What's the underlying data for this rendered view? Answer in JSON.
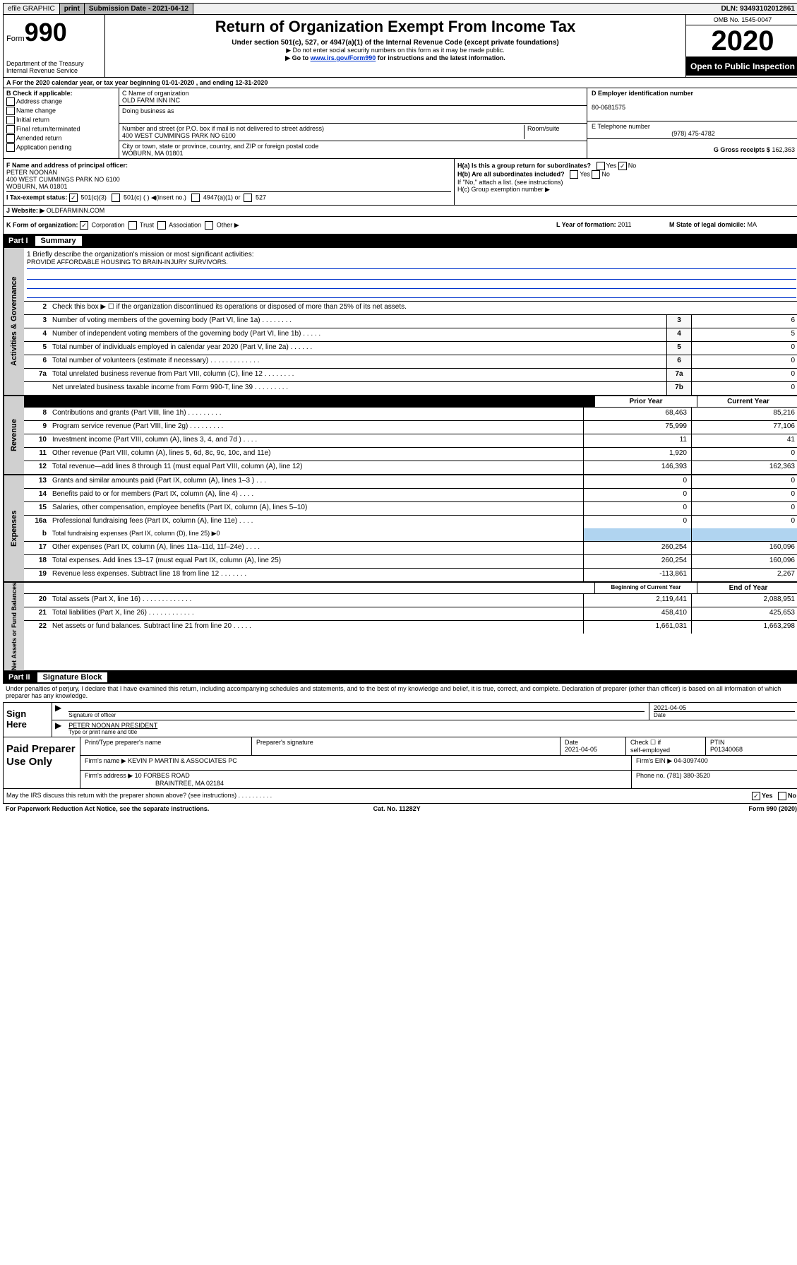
{
  "top": {
    "efile": "efile GRAPHIC",
    "print": "print",
    "subdate_label": "Submission Date - ",
    "subdate": "2021-04-12",
    "dln_label": "DLN: ",
    "dln": "93493102012861"
  },
  "header": {
    "form_label": "Form",
    "form_no": "990",
    "dept1": "Department of the Treasury",
    "dept2": "Internal Revenue Service",
    "title": "Return of Organization Exempt From Income Tax",
    "sub": "Under section 501(c), 527, or 4947(a)(1) of the Internal Revenue Code (except private foundations)",
    "note1": "▶ Do not enter social security numbers on this form as it may be made public.",
    "note2_a": "▶ Go to ",
    "note2_link": "www.irs.gov/Form990",
    "note2_b": " for instructions and the latest information.",
    "omb": "OMB No. 1545-0047",
    "year": "2020",
    "open": "Open to Public Inspection"
  },
  "rowA": "A For the 2020 calendar year, or tax year beginning 01-01-2020     , and ending 12-31-2020",
  "colB": {
    "label": "B Check if applicable:",
    "items": [
      "Address change",
      "Name change",
      "Initial return",
      "Final return/terminated",
      "Amended return",
      "Application pending"
    ]
  },
  "colC": {
    "name_label": "C Name of organization",
    "name": "OLD FARM INN INC",
    "dba_label": "Doing business as",
    "addr_label": "Number and street (or P.O. box if mail is not delivered to street address)",
    "room_label": "Room/suite",
    "addr": "400 WEST CUMMINGS PARK NO 6100",
    "city_label": "City or town, state or province, country, and ZIP or foreign postal code",
    "city": "WOBURN, MA  01801"
  },
  "colD": {
    "ein_label": "D Employer identification number",
    "ein": "80-0681575",
    "tel_label": "E Telephone number",
    "tel": "(978) 475-4782",
    "gross_label": "G Gross receipts $",
    "gross": "162,363"
  },
  "rowF": {
    "label": "F  Name and address of principal officer:",
    "name": "PETER NOONAN",
    "addr1": "400 WEST CUMMINGS PARK NO 6100",
    "addr2": "WOBURN, MA  01801"
  },
  "rowH": {
    "ha": "H(a)  Is this a group return for subordinates?",
    "ha_ans": "No",
    "hb": "H(b)  Are all subordinates included?",
    "hb_note": "If \"No,\" attach a list. (see instructions)",
    "hc": "H(c)  Group exemption number ▶"
  },
  "rowI": {
    "label": "I   Tax-exempt status:",
    "opt1": "501(c)(3)",
    "opt2": "501(c) (   ) ◀(insert no.)",
    "opt3": "4947(a)(1) or",
    "opt4": "527"
  },
  "rowJ": {
    "label": "J   Website: ▶",
    "val": "OLDFARMINN.COM"
  },
  "rowK": {
    "k": "K Form of organization:",
    "opts": [
      "Corporation",
      "Trust",
      "Association",
      "Other ▶"
    ],
    "l_label": "L Year of formation:",
    "l_val": "2011",
    "m_label": "M State of legal domicile:",
    "m_val": "MA"
  },
  "part1": {
    "label": "Part I",
    "title": "Summary"
  },
  "mission": {
    "q": "1  Briefly describe the organization's mission or most significant activities:",
    "text": "PROVIDE AFFORDABLE HOUSING TO BRAIN-INJURY SURVIVORS."
  },
  "governance": {
    "line2": "Check this box ▶ ☐  if the organization discontinued its operations or disposed of more than 25% of its net assets.",
    "lines": [
      {
        "n": "3",
        "t": "Number of voting members of the governing body (Part VI, line 1a)   .   .   .   .   .   .   .   .",
        "box": "3",
        "v": "6"
      },
      {
        "n": "4",
        "t": "Number of independent voting members of the governing body (Part VI, line 1b)   .   .   .   .   .",
        "box": "4",
        "v": "5"
      },
      {
        "n": "5",
        "t": "Total number of individuals employed in calendar year 2020 (Part V, line 2a)   .   .   .   .   .   .",
        "box": "5",
        "v": "0"
      },
      {
        "n": "6",
        "t": "Total number of volunteers (estimate if necessary)   .   .   .   .   .   .   .   .   .   .   .   .   .",
        "box": "6",
        "v": "0"
      },
      {
        "n": "7a",
        "t": "Total unrelated business revenue from Part VIII, column (C), line 12   .   .   .   .   .   .   .   .",
        "box": "7a",
        "v": "0"
      },
      {
        "n": "",
        "t": "Net unrelated business taxable income from Form 990-T, line 39   .   .   .   .   .   .   .   .   .",
        "box": "7b",
        "v": "0"
      }
    ]
  },
  "revenue": {
    "head_prior": "Prior Year",
    "head_curr": "Current Year",
    "lines": [
      {
        "n": "8",
        "t": "Contributions and grants (Part VIII, line 1h)   .   .   .   .   .   .   .   .   .",
        "p": "68,463",
        "c": "85,216"
      },
      {
        "n": "9",
        "t": "Program service revenue (Part VIII, line 2g)   .   .   .   .   .   .   .   .   .",
        "p": "75,999",
        "c": "77,106"
      },
      {
        "n": "10",
        "t": "Investment income (Part VIII, column (A), lines 3, 4, and 7d )   .   .   .   .",
        "p": "11",
        "c": "41"
      },
      {
        "n": "11",
        "t": "Other revenue (Part VIII, column (A), lines 5, 6d, 8c, 9c, 10c, and 11e)",
        "p": "1,920",
        "c": "0"
      },
      {
        "n": "12",
        "t": "Total revenue—add lines 8 through 11 (must equal Part VIII, column (A), line 12)",
        "p": "146,393",
        "c": "162,363"
      }
    ]
  },
  "expenses": {
    "lines": [
      {
        "n": "13",
        "t": "Grants and similar amounts paid (Part IX, column (A), lines 1–3 )   .   .   .",
        "p": "0",
        "c": "0"
      },
      {
        "n": "14",
        "t": "Benefits paid to or for members (Part IX, column (A), line 4)   .   .   .   .",
        "p": "0",
        "c": "0"
      },
      {
        "n": "15",
        "t": "Salaries, other compensation, employee benefits (Part IX, column (A), lines 5–10)",
        "p": "0",
        "c": "0"
      },
      {
        "n": "16a",
        "t": "Professional fundraising fees (Part IX, column (A), line 11e)   .   .   .   .",
        "p": "0",
        "c": "0"
      }
    ],
    "line_b": {
      "n": "b",
      "t": "Total fundraising expenses (Part IX, column (D), line 25) ▶0"
    },
    "lines2": [
      {
        "n": "17",
        "t": "Other expenses (Part IX, column (A), lines 11a–11d, 11f–24e)   .   .   .   .",
        "p": "260,254",
        "c": "160,096"
      },
      {
        "n": "18",
        "t": "Total expenses. Add lines 13–17 (must equal Part IX, column (A), line 25)",
        "p": "260,254",
        "c": "160,096"
      },
      {
        "n": "19",
        "t": "Revenue less expenses. Subtract line 18 from line 12   .   .   .   .   .   .   .",
        "p": "-113,861",
        "c": "2,267"
      }
    ]
  },
  "netassets": {
    "head_beg": "Beginning of Current Year",
    "head_end": "End of Year",
    "lines": [
      {
        "n": "20",
        "t": "Total assets (Part X, line 16)   .   .   .   .   .   .   .   .   .   .   .   .   .",
        "p": "2,119,441",
        "c": "2,088,951"
      },
      {
        "n": "21",
        "t": "Total liabilities (Part X, line 26)   .   .   .   .   .   .   .   .   .   .   .   .",
        "p": "458,410",
        "c": "425,653"
      },
      {
        "n": "22",
        "t": "Net assets or fund balances. Subtract line 21 from line 20   .   .   .   .   .",
        "p": "1,661,031",
        "c": "1,663,298"
      }
    ]
  },
  "part2": {
    "label": "Part II",
    "title": "Signature Block"
  },
  "sig_text": "Under penalties of perjury, I declare that I have examined this return, including accompanying schedules and statements, and to the best of my knowledge and belief, it is true, correct, and complete. Declaration of preparer (other than officer) is based on all information of which preparer has any knowledge.",
  "sign": {
    "label": "Sign Here",
    "sig_officer": "Signature of officer",
    "date": "2021-04-05",
    "date_label": "Date",
    "name": "PETER NOONAN  PRESIDENT",
    "name_label": "Type or print name and title"
  },
  "prep": {
    "label": "Paid Preparer Use Only",
    "h1": "Print/Type preparer's name",
    "h2": "Preparer's signature",
    "h3": "Date",
    "date": "2021-04-05",
    "h4a": "Check ☐ if",
    "h4b": "self-employed",
    "h5": "PTIN",
    "ptin": "P01340068",
    "firm_name_label": "Firm's name      ▶",
    "firm_name": "KEVIN P MARTIN & ASSOCIATES PC",
    "firm_ein_label": "Firm's EIN ▶",
    "firm_ein": "04-3097400",
    "firm_addr_label": "Firm's address  ▶",
    "firm_addr": "10 FORBES ROAD",
    "firm_city": "BRAINTREE, MA  02184",
    "phone_label": "Phone no.",
    "phone": "(781) 380-3520"
  },
  "discuss": "May the IRS discuss this return with the preparer shown above? (see instructions)   .   .   .   .   .   .   .   .   .   .",
  "discuss_yes": "Yes",
  "discuss_no": "No",
  "footer": {
    "left": "For Paperwork Reduction Act Notice, see the separate instructions.",
    "mid": "Cat. No. 11282Y",
    "right": "Form 990 (2020)"
  },
  "tabs": {
    "gov": "Activities & Governance",
    "rev": "Revenue",
    "exp": "Expenses",
    "net": "Net Assets or Fund Balances"
  }
}
